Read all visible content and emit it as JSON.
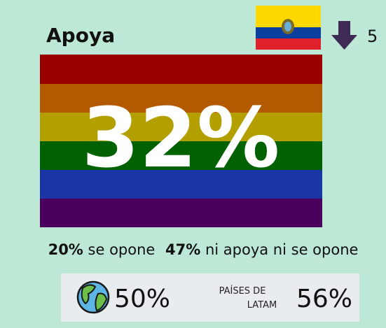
{
  "header": {
    "title": "Apoya",
    "rank_change": "5"
  },
  "main": {
    "value": "32%"
  },
  "details": {
    "oppose_value": "20%",
    "oppose_label": "se opone",
    "neutral_value": "47%",
    "neutral_label": "ni apoya ni se opone"
  },
  "comparison": {
    "world_value": "50%",
    "latam_label_line1": "PAÍSES DE",
    "latam_label_line2": "LATAM",
    "latam_value": "56%"
  }
}
